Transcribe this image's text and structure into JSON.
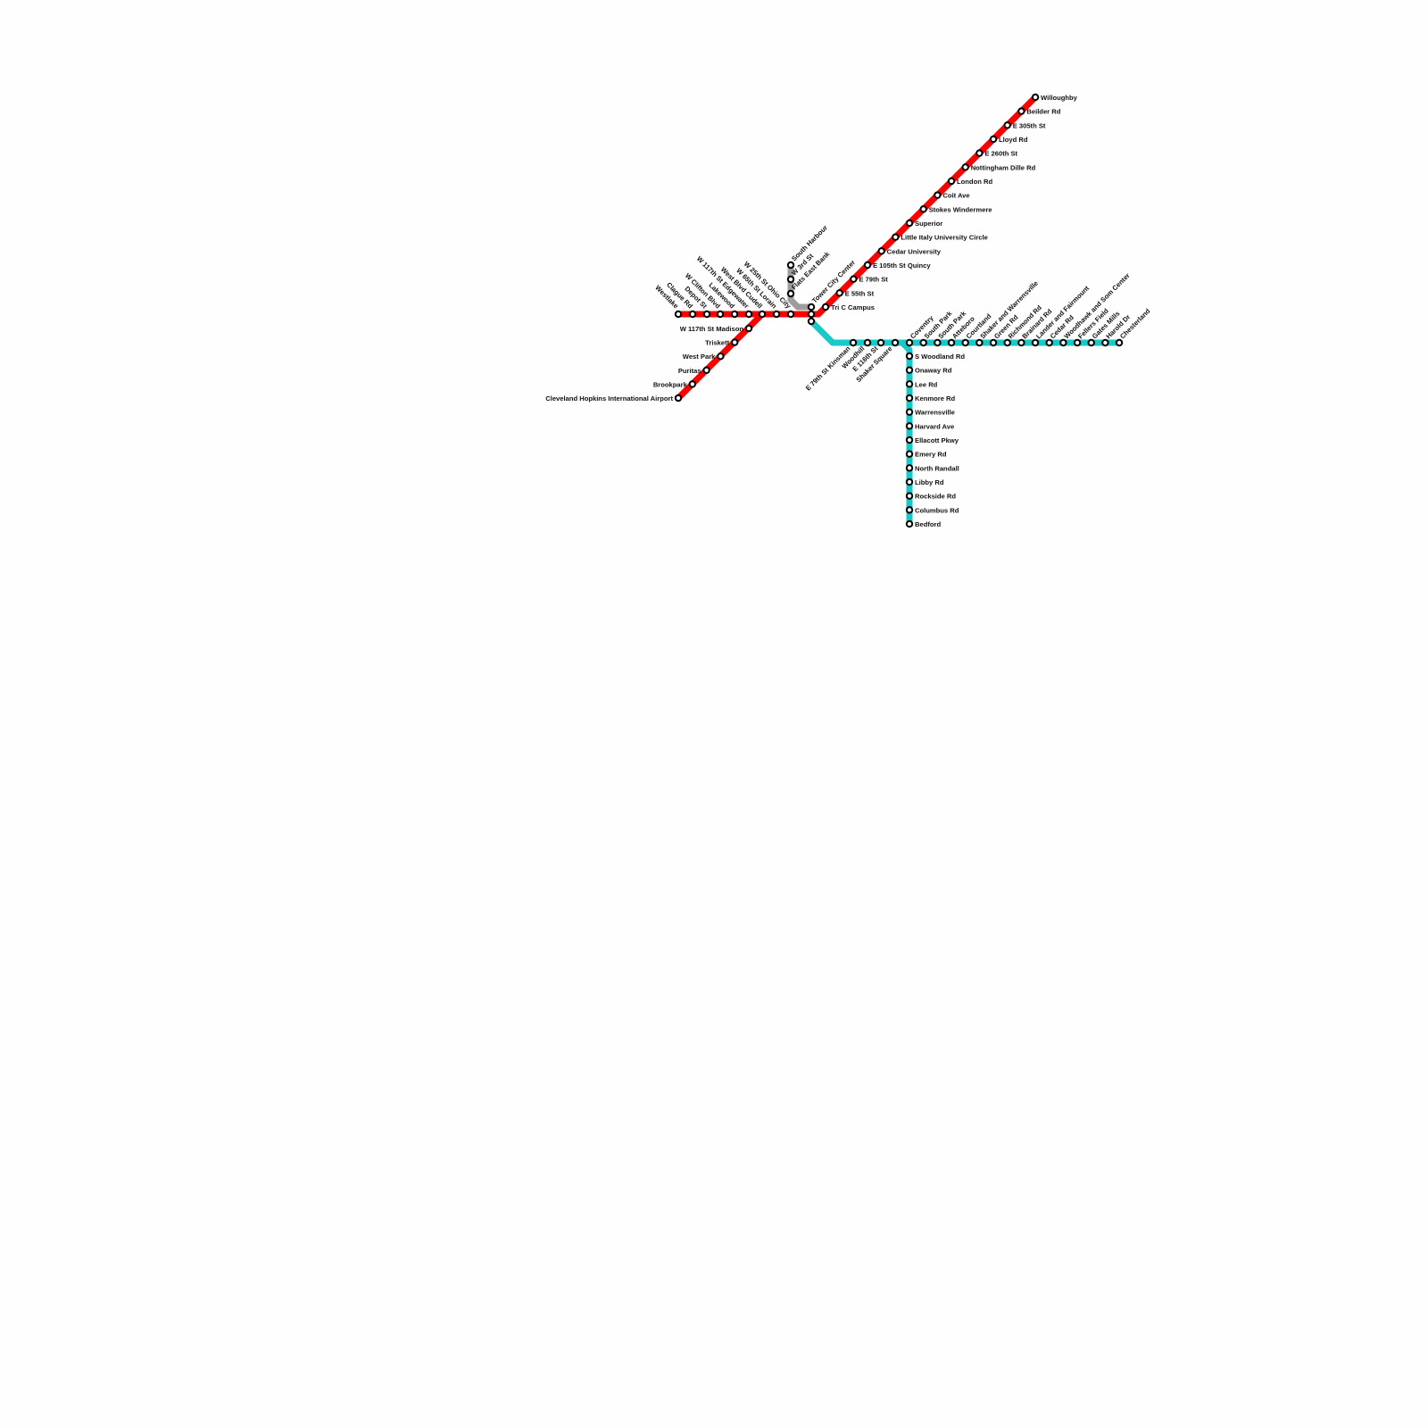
{
  "map": {
    "colors": {
      "red": "#ff0000",
      "teal": "#19c8c8",
      "grey": "#9d9d9d",
      "stop_fill": "#ffffff",
      "stop_stroke": "#000000"
    },
    "tower_city": "Tower City Center",
    "red_west": [
      "Westlake",
      "Clague Rd",
      "Depot St",
      "W Clifton Blvd",
      "Lakewood",
      "W 117th St Edgewater",
      "West Blvd Cudell",
      "W 65th St Lorain",
      "W 25th St Ohio City"
    ],
    "red_airport": [
      "W 117th St Madison",
      "Triskett",
      "West Park",
      "Puritas",
      "Brookpark",
      "Cleveland Hopkins International Airport"
    ],
    "red_east": [
      "Tri C Campus",
      "E 55th St",
      "E 79th St",
      "E 105th St Quincy",
      "Cedar University",
      "Little Italy University Circle",
      "Superior",
      "Stokes Windermere",
      "Coit Ave",
      "London Rd",
      "Nottingham Dille Rd",
      "E 260th St",
      "Lloyd Rd",
      "E 305th St",
      "Beilder Rd",
      "Willoughby"
    ],
    "waterfront": [
      "South Harbour",
      "W 3rd St",
      "Flats East Bank"
    ],
    "teal_trunk": [
      "E 79th St Kinsman",
      "Woodhill",
      "E 116th St",
      "Shaker Square"
    ],
    "teal_east": [
      "Coventry",
      "South Park",
      "South Park",
      "Atteboro",
      "Courtland",
      "Shaker and Warrensville",
      "Green Rd",
      "Richmond Rd",
      "Brainard Rd",
      "Lander and Fairmount",
      "Cedar Rd",
      "Woodhawk and Som Center",
      "Fellers Field",
      "Gates Mills",
      "Harold Dr",
      "Chesterland"
    ],
    "teal_bedford": [
      "S Woodland Rd",
      "Onaway Rd",
      "Lee Rd",
      "Kenmore Rd",
      "Warrensville",
      "Harvard Ave",
      "Ellacott Pkwy",
      "Emery Rd",
      "North Randall",
      "Libby Rd",
      "Rockside Rd",
      "Columbus Rd",
      "Bedford"
    ]
  }
}
